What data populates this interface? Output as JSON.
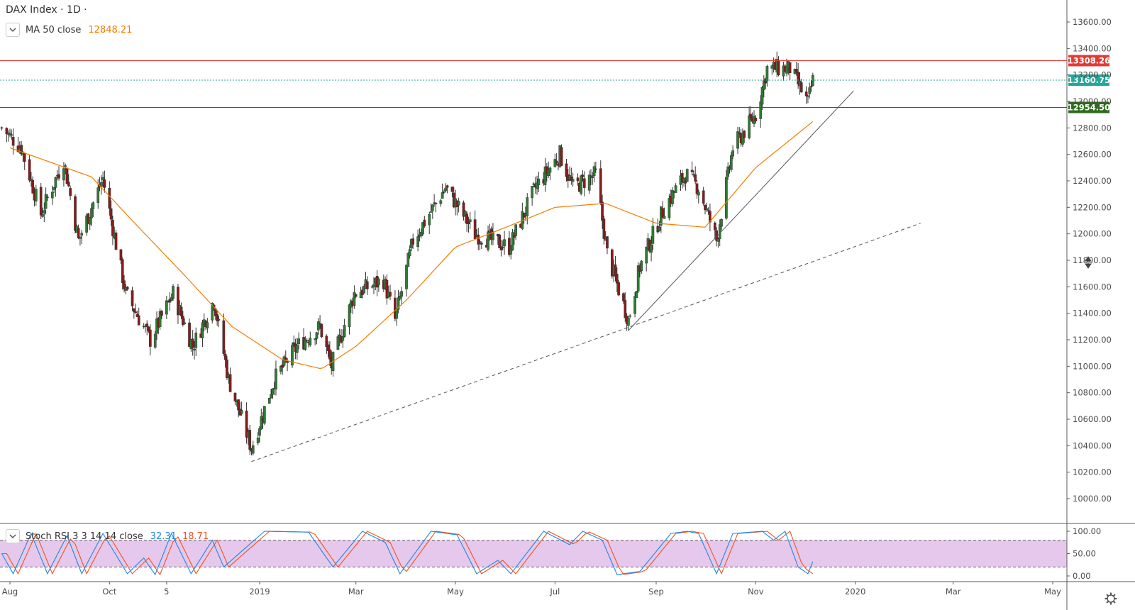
{
  "header": {
    "title": "DAX Index · 1D ·",
    "indicator_label": "MA 50 close",
    "indicator_value": "12848.21"
  },
  "stoch": {
    "label": "Stoch RSI 3 3 14 14 close",
    "k_value": "32.31",
    "d_value": "18.71"
  },
  "colors": {
    "up": "#26a69a",
    "up_body": "#2e7d32",
    "down": "#8b1a1a",
    "ma": "#f57c00",
    "resistance": "#e53935",
    "support": "#2e7d32",
    "last": "#26a69a",
    "stoch_k": "#1e88e5",
    "stoch_d": "#f4511e",
    "stoch_band": "#e1bee7"
  },
  "badges": [
    {
      "label": "13308.26",
      "price": 13308.26,
      "color": "#e53935",
      "line": "solid"
    },
    {
      "label": "13160.75",
      "price": 13160.75,
      "color": "#26a69a",
      "line": "dotted"
    },
    {
      "label": "12954.50",
      "price": 12954.5,
      "color": "#2e6b1f",
      "line": "solid"
    }
  ],
  "y_ticks": [
    "10000.00",
    "10200.00",
    "10400.00",
    "10600.00",
    "10800.00",
    "11000.00",
    "11200.00",
    "11400.00",
    "11600.00",
    "11800.00",
    "12000.00",
    "12200.00",
    "12400.00",
    "12600.00",
    "12800.00",
    "13000.00",
    "13200.00",
    "13400.00",
    "13600.00"
  ],
  "stoch_ticks": [
    "100.00",
    "50.00",
    "0.00"
  ],
  "x_ticks": [
    "Aug",
    "Oct",
    "5",
    "2019",
    "Mar",
    "May",
    "Jul",
    "Sep",
    "Nov",
    "2020",
    "Mar",
    "May"
  ],
  "chart_data": {
    "type": "candlestick",
    "title": "DAX Index · 1D",
    "y_range": [
      10000,
      13700
    ],
    "x_range": [
      "2018-08-01",
      "2020-05-31"
    ],
    "ma50_last": 12848.21,
    "anchors": [
      {
        "date": "2018-07-27",
        "price": 12800
      },
      {
        "date": "2018-08-08",
        "price": 12650
      },
      {
        "date": "2018-08-20",
        "price": 12150
      },
      {
        "date": "2018-09-03",
        "price": 12560
      },
      {
        "date": "2018-09-12",
        "price": 11950
      },
      {
        "date": "2018-09-27",
        "price": 12420
      },
      {
        "date": "2018-10-11",
        "price": 11550
      },
      {
        "date": "2018-10-26",
        "price": 11200
      },
      {
        "date": "2018-11-09",
        "price": 11550
      },
      {
        "date": "2018-11-21",
        "price": 11150
      },
      {
        "date": "2018-12-04",
        "price": 11500
      },
      {
        "date": "2018-12-13",
        "price": 10900
      },
      {
        "date": "2018-12-27",
        "price": 10380
      },
      {
        "date": "2019-01-10",
        "price": 10900
      },
      {
        "date": "2019-01-24",
        "price": 11150
      },
      {
        "date": "2019-02-07",
        "price": 11300
      },
      {
        "date": "2019-02-14",
        "price": 11000
      },
      {
        "date": "2019-02-28",
        "price": 11550
      },
      {
        "date": "2019-03-18",
        "price": 11650
      },
      {
        "date": "2019-03-25",
        "price": 11350
      },
      {
        "date": "2019-04-05",
        "price": 11950
      },
      {
        "date": "2019-04-25",
        "price": 12350
      },
      {
        "date": "2019-05-13",
        "price": 12000
      },
      {
        "date": "2019-06-03",
        "price": 11900
      },
      {
        "date": "2019-06-19",
        "price": 12350
      },
      {
        "date": "2019-07-04",
        "price": 12600
      },
      {
        "date": "2019-07-12",
        "price": 12350
      },
      {
        "date": "2019-07-26",
        "price": 12450
      },
      {
        "date": "2019-08-02",
        "price": 11850
      },
      {
        "date": "2019-08-15",
        "price": 11350
      },
      {
        "date": "2019-08-22",
        "price": 11750
      },
      {
        "date": "2019-09-06",
        "price": 12200
      },
      {
        "date": "2019-09-19",
        "price": 12450
      },
      {
        "date": "2019-09-27",
        "price": 12350
      },
      {
        "date": "2019-10-08",
        "price": 11950
      },
      {
        "date": "2019-10-18",
        "price": 12650
      },
      {
        "date": "2019-11-01",
        "price": 12900
      },
      {
        "date": "2019-11-08",
        "price": 13250
      },
      {
        "date": "2019-11-22",
        "price": 13250
      },
      {
        "date": "2019-12-03",
        "price": 12990
      },
      {
        "date": "2019-12-06",
        "price": 13160
      }
    ],
    "ma50": [
      {
        "date": "2018-08-01",
        "price": 12650
      },
      {
        "date": "2018-09-20",
        "price": 12430
      },
      {
        "date": "2018-10-15",
        "price": 12100
      },
      {
        "date": "2018-11-15",
        "price": 11700
      },
      {
        "date": "2018-12-15",
        "price": 11300
      },
      {
        "date": "2019-01-15",
        "price": 11050
      },
      {
        "date": "2019-02-08",
        "price": 10980
      },
      {
        "date": "2019-03-01",
        "price": 11150
      },
      {
        "date": "2019-04-01",
        "price": 11500
      },
      {
        "date": "2019-05-01",
        "price": 11900
      },
      {
        "date": "2019-06-01",
        "price": 12050
      },
      {
        "date": "2019-07-01",
        "price": 12200
      },
      {
        "date": "2019-08-01",
        "price": 12230
      },
      {
        "date": "2019-09-01",
        "price": 12080
      },
      {
        "date": "2019-10-01",
        "price": 12050
      },
      {
        "date": "2019-11-01",
        "price": 12500
      },
      {
        "date": "2019-12-06",
        "price": 12848.21
      }
    ],
    "trendlines": [
      {
        "style": "solid",
        "from": {
          "date": "2019-08-15",
          "price": 11270
        },
        "to": {
          "date": "2019-12-31",
          "price": 13080
        }
      },
      {
        "style": "dashed",
        "from": {
          "date": "2018-12-27",
          "price": 10280
        },
        "to": {
          "date": "2020-02-10",
          "price": 12080
        }
      }
    ],
    "stoch_rsi": {
      "levels": [
        20,
        80
      ],
      "k_last": 32.31,
      "d_last": 18.71,
      "anchors": [
        {
          "date": "2018-07-27",
          "value": 50
        },
        {
          "date": "2018-08-03",
          "value": 5
        },
        {
          "date": "2018-08-14",
          "value": 95
        },
        {
          "date": "2018-08-24",
          "value": 5
        },
        {
          "date": "2018-09-05",
          "value": 90
        },
        {
          "date": "2018-09-14",
          "value": 5
        },
        {
          "date": "2018-09-27",
          "value": 95
        },
        {
          "date": "2018-10-12",
          "value": 5
        },
        {
          "date": "2018-10-22",
          "value": 40
        },
        {
          "date": "2018-10-29",
          "value": 3
        },
        {
          "date": "2018-11-08",
          "value": 95
        },
        {
          "date": "2018-11-20",
          "value": 5
        },
        {
          "date": "2018-12-03",
          "value": 80
        },
        {
          "date": "2018-12-10",
          "value": 20
        },
        {
          "date": "2019-01-04",
          "value": 100
        },
        {
          "date": "2019-01-31",
          "value": 98
        },
        {
          "date": "2019-02-15",
          "value": 20
        },
        {
          "date": "2019-03-05",
          "value": 100
        },
        {
          "date": "2019-03-19",
          "value": 75
        },
        {
          "date": "2019-03-28",
          "value": 5
        },
        {
          "date": "2019-04-16",
          "value": 100
        },
        {
          "date": "2019-05-02",
          "value": 92
        },
        {
          "date": "2019-05-14",
          "value": 5
        },
        {
          "date": "2019-05-27",
          "value": 35
        },
        {
          "date": "2019-06-04",
          "value": 5
        },
        {
          "date": "2019-06-24",
          "value": 100
        },
        {
          "date": "2019-07-10",
          "value": 70
        },
        {
          "date": "2019-07-18",
          "value": 100
        },
        {
          "date": "2019-07-30",
          "value": 80
        },
        {
          "date": "2019-08-08",
          "value": 3
        },
        {
          "date": "2019-08-22",
          "value": 10
        },
        {
          "date": "2019-09-10",
          "value": 95
        },
        {
          "date": "2019-09-20",
          "value": 100
        },
        {
          "date": "2019-09-27",
          "value": 95
        },
        {
          "date": "2019-10-08",
          "value": 5
        },
        {
          "date": "2019-10-18",
          "value": 95
        },
        {
          "date": "2019-11-05",
          "value": 100
        },
        {
          "date": "2019-11-12",
          "value": 80
        },
        {
          "date": "2019-11-19",
          "value": 100
        },
        {
          "date": "2019-11-27",
          "value": 20
        },
        {
          "date": "2019-12-03",
          "value": 5
        },
        {
          "date": "2019-12-06",
          "value": 32
        }
      ]
    }
  }
}
